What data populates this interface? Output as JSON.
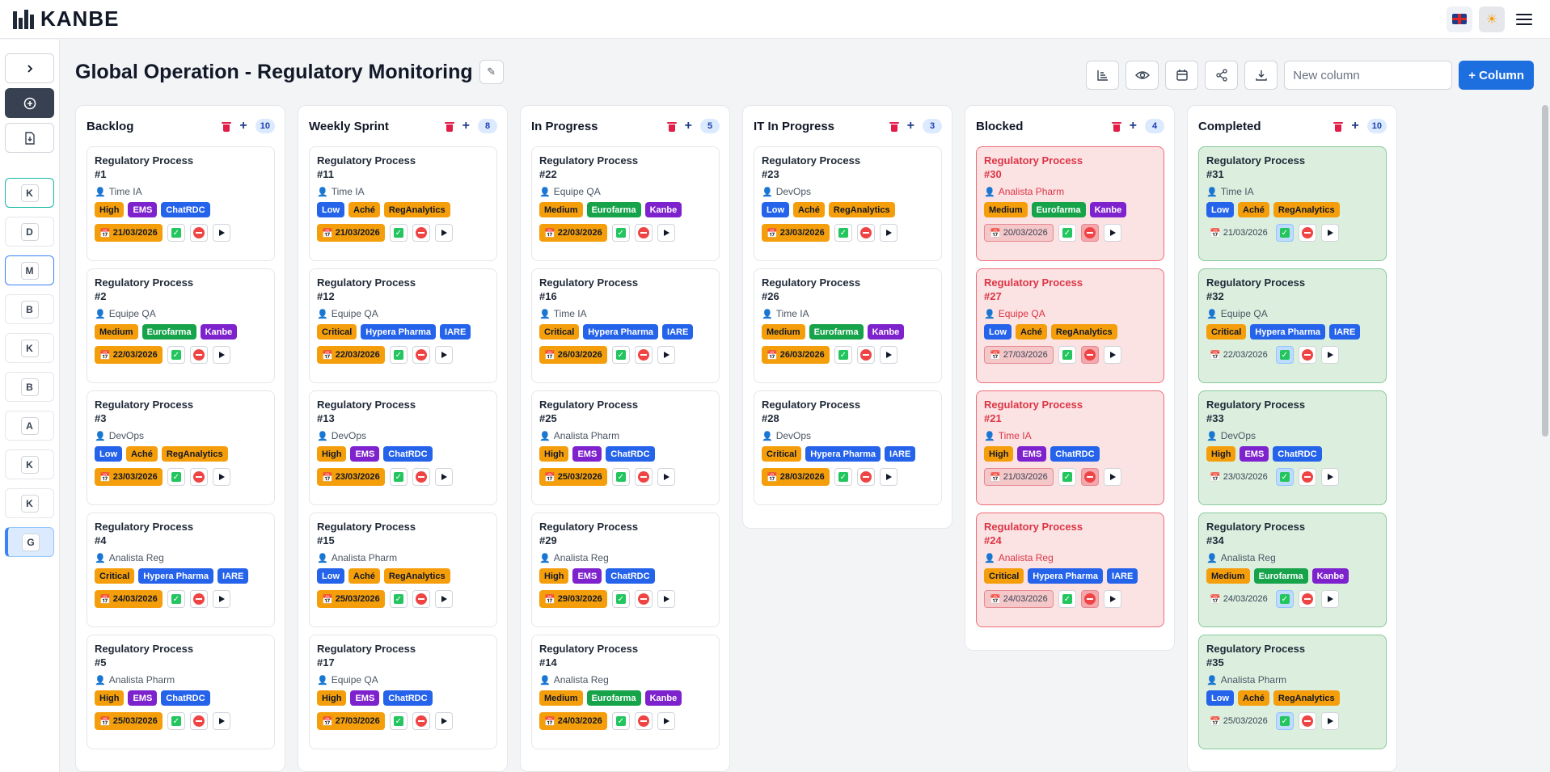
{
  "app": {
    "logo_text": "KANBE"
  },
  "header": {
    "lang_icon": "uk-flag-icon",
    "theme_icon": "sun-icon",
    "menu_icon": "hamburger-icon"
  },
  "rail": {
    "boards": [
      {
        "letter": "K",
        "style": "teal"
      },
      {
        "letter": "D",
        "style": ""
      },
      {
        "letter": "M",
        "style": "blue"
      },
      {
        "letter": "B",
        "style": ""
      },
      {
        "letter": "K",
        "style": ""
      },
      {
        "letter": "B",
        "style": ""
      },
      {
        "letter": "A",
        "style": ""
      },
      {
        "letter": "K",
        "style": ""
      },
      {
        "letter": "K",
        "style": ""
      },
      {
        "letter": "G",
        "style": "active"
      }
    ]
  },
  "page": {
    "title": "Global Operation - Regulatory Monitoring",
    "edit_icon": "pencil-icon"
  },
  "toolbar": {
    "new_column_placeholder": "New column",
    "add_column_label": "+ Column"
  },
  "columns": [
    {
      "title": "Backlog",
      "count": "10",
      "variant": "",
      "cards": [
        {
          "title": "Regulatory Process",
          "num": "#1",
          "owner": "Time IA",
          "priority": "High",
          "tags": [
            [
              "EMS",
              "purple"
            ],
            [
              "ChatRDC",
              "blue"
            ]
          ],
          "date": "21/03/2026"
        },
        {
          "title": "Regulatory Process",
          "num": "#2",
          "owner": "Equipe QA",
          "priority": "Medium",
          "tags": [
            [
              "Eurofarma",
              "green"
            ],
            [
              "Kanbe",
              "purple"
            ]
          ],
          "date": "22/03/2026"
        },
        {
          "title": "Regulatory Process",
          "num": "#3",
          "owner": "DevOps",
          "priority": "Low",
          "tags": [
            [
              "Aché",
              "orange"
            ],
            [
              "RegAnalytics",
              "orange"
            ]
          ],
          "date": "23/03/2026"
        },
        {
          "title": "Regulatory Process",
          "num": "#4",
          "owner": "Analista Reg",
          "priority": "Critical",
          "tags": [
            [
              "Hypera Pharma",
              "blue"
            ],
            [
              "IARE",
              "blue"
            ]
          ],
          "date": "24/03/2026"
        },
        {
          "title": "Regulatory Process",
          "num": "#5",
          "owner": "Analista Pharm",
          "priority": "High",
          "tags": [
            [
              "EMS",
              "purple"
            ],
            [
              "ChatRDC",
              "blue"
            ]
          ],
          "date": "25/03/2026"
        }
      ]
    },
    {
      "title": "Weekly Sprint",
      "count": "8",
      "variant": "",
      "cards": [
        {
          "title": "Regulatory Process",
          "num": "#11",
          "owner": "Time IA",
          "priority": "Low",
          "tags": [
            [
              "Aché",
              "orange"
            ],
            [
              "RegAnalytics",
              "orange"
            ]
          ],
          "date": "21/03/2026"
        },
        {
          "title": "Regulatory Process",
          "num": "#12",
          "owner": "Equipe QA",
          "priority": "Critical",
          "tags": [
            [
              "Hypera Pharma",
              "blue"
            ],
            [
              "IARE",
              "blue"
            ]
          ],
          "date": "22/03/2026"
        },
        {
          "title": "Regulatory Process",
          "num": "#13",
          "owner": "DevOps",
          "priority": "High",
          "tags": [
            [
              "EMS",
              "purple"
            ],
            [
              "ChatRDC",
              "blue"
            ]
          ],
          "date": "23/03/2026"
        },
        {
          "title": "Regulatory Process",
          "num": "#15",
          "owner": "Analista Pharm",
          "priority": "Low",
          "tags": [
            [
              "Aché",
              "orange"
            ],
            [
              "RegAnalytics",
              "orange"
            ]
          ],
          "date": "25/03/2026"
        },
        {
          "title": "Regulatory Process",
          "num": "#17",
          "owner": "Equipe QA",
          "priority": "High",
          "tags": [
            [
              "EMS",
              "purple"
            ],
            [
              "ChatRDC",
              "blue"
            ]
          ],
          "date": "27/03/2026"
        }
      ]
    },
    {
      "title": "In Progress",
      "count": "5",
      "variant": "",
      "cards": [
        {
          "title": "Regulatory Process",
          "num": "#22",
          "owner": "Equipe QA",
          "priority": "Medium",
          "tags": [
            [
              "Eurofarma",
              "green"
            ],
            [
              "Kanbe",
              "purple"
            ]
          ],
          "date": "22/03/2026"
        },
        {
          "title": "Regulatory Process",
          "num": "#16",
          "owner": "Time IA",
          "priority": "Critical",
          "tags": [
            [
              "Hypera Pharma",
              "blue"
            ],
            [
              "IARE",
              "blue"
            ]
          ],
          "date": "26/03/2026"
        },
        {
          "title": "Regulatory Process",
          "num": "#25",
          "owner": "Analista Pharm",
          "priority": "High",
          "tags": [
            [
              "EMS",
              "purple"
            ],
            [
              "ChatRDC",
              "blue"
            ]
          ],
          "date": "25/03/2026"
        },
        {
          "title": "Regulatory Process",
          "num": "#29",
          "owner": "Analista Reg",
          "priority": "High",
          "tags": [
            [
              "EMS",
              "purple"
            ],
            [
              "ChatRDC",
              "blue"
            ]
          ],
          "date": "29/03/2026"
        },
        {
          "title": "Regulatory Process",
          "num": "#14",
          "owner": "Analista Reg",
          "priority": "Medium",
          "tags": [
            [
              "Eurofarma",
              "green"
            ],
            [
              "Kanbe",
              "purple"
            ]
          ],
          "date": "24/03/2026"
        }
      ]
    },
    {
      "title": "IT In Progress",
      "count": "3",
      "variant": "",
      "cards": [
        {
          "title": "Regulatory Process",
          "num": "#23",
          "owner": "DevOps",
          "priority": "Low",
          "tags": [
            [
              "Aché",
              "orange"
            ],
            [
              "RegAnalytics",
              "orange"
            ]
          ],
          "date": "23/03/2026"
        },
        {
          "title": "Regulatory Process",
          "num": "#26",
          "owner": "Time IA",
          "priority": "Medium",
          "tags": [
            [
              "Eurofarma",
              "green"
            ],
            [
              "Kanbe",
              "purple"
            ]
          ],
          "date": "26/03/2026"
        },
        {
          "title": "Regulatory Process",
          "num": "#28",
          "owner": "DevOps",
          "priority": "Critical",
          "tags": [
            [
              "Hypera Pharma",
              "blue"
            ],
            [
              "IARE",
              "blue"
            ]
          ],
          "date": "28/03/2026"
        }
      ]
    },
    {
      "title": "Blocked",
      "count": "4",
      "variant": "blocked",
      "cards": [
        {
          "title": "Regulatory Process",
          "num": "#30",
          "owner": "Analista Pharm",
          "priority": "Medium",
          "tags": [
            [
              "Eurofarma",
              "green"
            ],
            [
              "Kanbe",
              "purple"
            ]
          ],
          "date": "20/03/2026"
        },
        {
          "title": "Regulatory Process",
          "num": "#27",
          "owner": "Equipe QA",
          "priority": "Low",
          "tags": [
            [
              "Aché",
              "orange"
            ],
            [
              "RegAnalytics",
              "orange"
            ]
          ],
          "date": "27/03/2026"
        },
        {
          "title": "Regulatory Process",
          "num": "#21",
          "owner": "Time IA",
          "priority": "High",
          "tags": [
            [
              "EMS",
              "purple"
            ],
            [
              "ChatRDC",
              "blue"
            ]
          ],
          "date": "21/03/2026"
        },
        {
          "title": "Regulatory Process",
          "num": "#24",
          "owner": "Analista Reg",
          "priority": "Critical",
          "tags": [
            [
              "Hypera Pharma",
              "blue"
            ],
            [
              "IARE",
              "blue"
            ]
          ],
          "date": "24/03/2026"
        }
      ]
    },
    {
      "title": "Completed",
      "count": "10",
      "variant": "done",
      "cards": [
        {
          "title": "Regulatory Process",
          "num": "#31",
          "owner": "Time IA",
          "priority": "Low",
          "tags": [
            [
              "Aché",
              "orange"
            ],
            [
              "RegAnalytics",
              "orange"
            ]
          ],
          "date": "21/03/2026"
        },
        {
          "title": "Regulatory Process",
          "num": "#32",
          "owner": "Equipe QA",
          "priority": "Critical",
          "tags": [
            [
              "Hypera Pharma",
              "blue"
            ],
            [
              "IARE",
              "blue"
            ]
          ],
          "date": "22/03/2026"
        },
        {
          "title": "Regulatory Process",
          "num": "#33",
          "owner": "DevOps",
          "priority": "High",
          "tags": [
            [
              "EMS",
              "purple"
            ],
            [
              "ChatRDC",
              "blue"
            ]
          ],
          "date": "23/03/2026"
        },
        {
          "title": "Regulatory Process",
          "num": "#34",
          "owner": "Analista Reg",
          "priority": "Medium",
          "tags": [
            [
              "Eurofarma",
              "green"
            ],
            [
              "Kanbe",
              "purple"
            ]
          ],
          "date": "24/03/2026"
        },
        {
          "title": "Regulatory Process",
          "num": "#35",
          "owner": "Analista Pharm",
          "priority": "Low",
          "tags": [
            [
              "Aché",
              "orange"
            ],
            [
              "RegAnalytics",
              "orange"
            ]
          ],
          "date": "25/03/2026"
        }
      ]
    }
  ],
  "colors": {
    "accent": "#1d6fe0",
    "blocked_bg": "#fbe3e4",
    "done_bg": "#dcefdf",
    "priority": "#f59e0b"
  }
}
